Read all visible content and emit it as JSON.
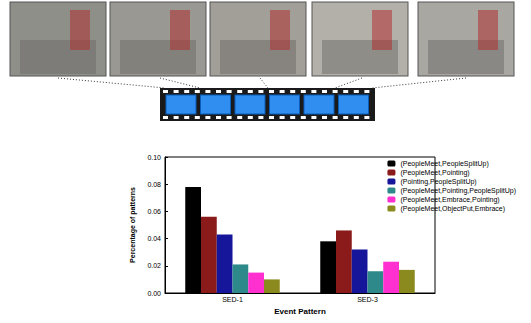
{
  "chart_data": {
    "type": "bar",
    "categories": [
      "SED-1",
      "SED-3"
    ],
    "x_label": "Event Pattern",
    "y_label": "Percentage of patterns",
    "series": [
      {
        "name": "(PeopleMeet,PeopleSplitUp)",
        "color": "#000000",
        "values": [
          0.078,
          0.038
        ]
      },
      {
        "name": "(PeopleMeet,Pointing)",
        "color": "#8b1a1a",
        "values": [
          0.056,
          0.046
        ]
      },
      {
        "name": "(Pointing,PeopleSplitUp)",
        "color": "#16169a",
        "values": [
          0.043,
          0.032
        ]
      },
      {
        "name": "(PeopleMeet,Pointing,PeopleSplitUp)",
        "color": "#2e8a8a",
        "values": [
          0.021,
          0.016
        ]
      },
      {
        "name": "(PeopleMeet,Embrace,Pointing)",
        "color": "#ff2fd0",
        "values": [
          0.015,
          0.023
        ]
      },
      {
        "name": "(PeopleMeet,ObjectPut,Embrace)",
        "color": "#8a8a1e",
        "values": [
          0.01,
          0.017
        ]
      }
    ],
    "ylim": [
      0,
      0.1
    ],
    "yticks": [
      {
        "value": 0,
        "label": "0.00"
      },
      {
        "value": 0.02,
        "label": "0.02"
      },
      {
        "value": 0.04,
        "label": "0.04"
      },
      {
        "value": 0.06,
        "label": "0.06"
      },
      {
        "value": 0.08,
        "label": "0.08"
      },
      {
        "value": 0.1,
        "label": "0.10"
      }
    ],
    "legend": "upper right",
    "grid": false
  }
}
